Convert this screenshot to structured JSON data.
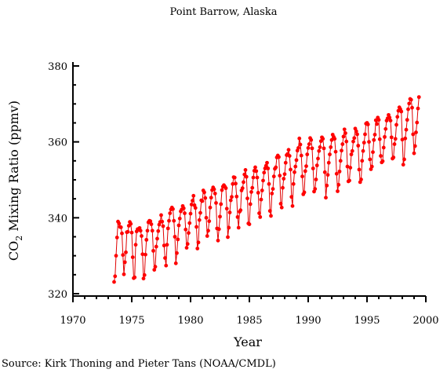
{
  "chart_data": {
    "type": "line",
    "title": "Point Barrow, Alaska",
    "xlabel": "Year",
    "ylabel_main": "CO",
    "ylabel_sub": "2",
    "ylabel_rest": " Mixing Ratio (ppmv)",
    "source": "Source: Kirk Thoning and Pieter Tans (NOAA/CMDL)",
    "xlim": [
      1970,
      2000
    ],
    "ylim": [
      320,
      380
    ],
    "xticks": [
      1970,
      1975,
      1980,
      1985,
      1990,
      1995,
      2000
    ],
    "yticks": [
      320,
      340,
      360,
      380
    ],
    "grid": false,
    "color": "#ff0000",
    "start_year": 1973.5,
    "end_year": 1999.0,
    "trend_start": 329.5,
    "trend_slope": 1.6,
    "seasonal_amplitude": 8.0,
    "monthly_values": [
      323.1,
      324.6,
      330.0,
      334.8,
      339.0,
      338.5,
      337.6,
      337.5,
      335.9,
      330.2,
      325.1,
      328.3,
      330.9,
      336.2,
      336.3,
      337.9,
      338.9,
      338.4,
      336.1,
      329.6,
      324.1,
      324.3,
      332.9,
      336.4,
      337.0,
      336.9,
      337.3,
      336.6,
      335.2,
      330.4,
      324.0,
      324.9,
      330.3,
      334.2,
      336.6,
      338.8,
      339.2,
      339.1,
      338.3,
      336.6,
      331.3,
      326.3,
      327.1,
      332.4,
      334.5,
      336.5,
      338.2,
      338.9,
      340.7,
      339.0,
      337.8,
      332.7,
      329.4,
      327.4,
      332.9,
      337.2,
      339.2,
      341.2,
      342.2,
      342.7,
      342.3,
      339.2,
      335.0,
      328.0,
      330.7,
      334.3,
      338.0,
      339.8,
      341.7,
      342.2,
      343.1,
      342.5,
      341.2,
      336.9,
      332.1,
      333.1,
      336.0,
      338.6,
      341.1,
      343.5,
      344.5,
      345.8,
      343.3,
      342.6,
      337.6,
      331.9,
      333.5,
      339.4,
      341.3,
      344.6,
      344.4,
      347.2,
      346.7,
      345.2,
      340.0,
      335.2,
      336.6,
      339.1,
      342.7,
      345.3,
      347.3,
      348.0,
      347.5,
      346.4,
      343.9,
      337.2,
      334.0,
      337.0,
      340.3,
      343.6,
      347.3,
      348.2,
      348.6,
      348.2,
      347.8,
      342.4,
      334.9,
      337.4,
      341.4,
      344.6,
      345.5,
      348.9,
      350.7,
      350.6,
      349.0,
      345.6,
      340.2,
      337.4,
      341.6,
      342.0,
      347.2,
      347.8,
      349.4,
      351.4,
      352.6,
      350.8,
      345.1,
      338.5,
      338.3,
      343.6,
      346.8,
      347.9,
      350.6,
      352.4,
      353.3,
      352.3,
      350.6,
      346.6,
      341.2,
      340.2,
      344.8,
      347.2,
      349.8,
      351.9,
      353.0,
      353.7,
      354.5,
      353.0,
      348.9,
      341.8,
      340.5,
      346.4,
      347.6,
      350.9,
      352.9,
      353.3,
      355.9,
      356.4,
      356.0,
      351.1,
      343.7,
      342.7,
      347.9,
      350.3,
      351.5,
      354.5,
      356.5,
      356.8,
      357.9,
      356.3,
      352.7,
      345.5,
      343.1,
      348.9,
      352.0,
      353.5,
      355.2,
      357.7,
      358.4,
      360.9,
      359.3,
      356.4,
      350.9,
      346.2,
      346.7,
      352.3,
      353.6,
      356.7,
      358.4,
      359.4,
      361.0,
      360.5,
      358.3,
      353.0,
      346.9,
      347.6,
      350.1,
      353.8,
      355.6,
      357.6,
      358.6,
      360.2,
      361.2,
      360.8,
      358.3,
      352.0,
      345.3,
      348.5,
      351.3,
      354.5,
      356.7,
      358.6,
      360.5,
      361.9,
      361.3,
      360.8,
      357.4,
      351.6,
      347.0,
      348.7,
      352.2,
      355.0,
      357.7,
      359.4,
      361.4,
      363.3,
      362.3,
      360.1,
      353.5,
      349.6,
      349.8,
      353.2,
      356.7,
      357.6,
      360.1,
      361.0,
      363.5,
      362.8,
      362.0,
      359.0,
      352.7,
      349.4,
      350.1,
      355.0,
      357.6,
      359.8,
      362.0,
      364.8,
      365.0,
      364.6,
      360.0,
      355.4,
      352.8,
      353.5,
      357.3,
      360.5,
      361.9,
      365.7,
      364.7,
      366.4,
      365.8,
      360.7,
      356.3,
      354.6,
      354.9,
      358.5,
      361.3,
      363.4,
      365.6,
      366.2,
      367.1,
      366.4,
      365.6,
      361.2,
      355.6,
      355.9,
      359.4,
      360.8,
      364.5,
      366.6,
      368.2,
      369.1,
      368.6,
      368.0,
      360.6,
      354.0,
      355.4,
      360.9,
      363.2,
      365.8,
      368.6,
      370.1,
      371.3,
      371.1,
      369.0,
      362.0,
      357.0,
      358.9,
      362.5,
      365.1,
      368.8,
      371.8
    ]
  }
}
